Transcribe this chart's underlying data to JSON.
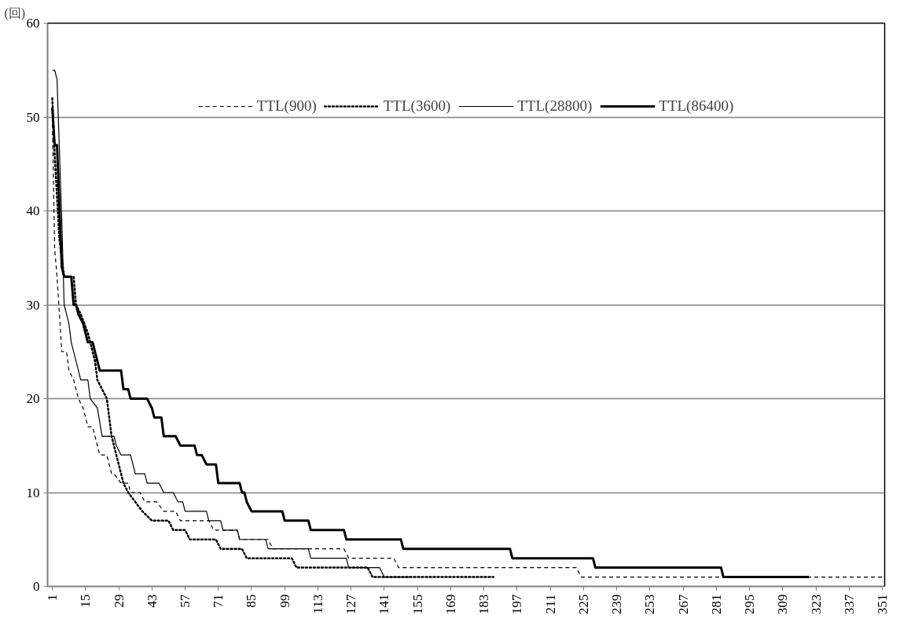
{
  "chart_data": {
    "type": "line",
    "ylabel": "(回)",
    "xlim": [
      -1,
      352
    ],
    "xticks": [
      1,
      15,
      29,
      43,
      57,
      71,
      85,
      99,
      113,
      127,
      141,
      155,
      169,
      183,
      197,
      211,
      225,
      239,
      253,
      267,
      281,
      295,
      309,
      323,
      337,
      351
    ],
    "ylim": [
      0,
      60
    ],
    "yticks": [
      0,
      10,
      20,
      30,
      40,
      50,
      60
    ],
    "grid": "y",
    "legend": "top",
    "series": [
      {
        "name": "TTL(900)",
        "color": "#000000",
        "line_style": "dashed",
        "x": [
          1,
          2,
          3,
          5,
          7,
          8,
          10,
          12,
          14,
          16,
          18,
          19,
          21,
          24,
          26,
          27,
          30,
          33,
          34,
          38,
          40,
          45,
          48,
          53,
          55,
          67,
          69,
          79,
          80,
          92,
          94,
          124,
          126,
          145,
          147,
          222,
          224,
          351
        ],
        "values": [
          50,
          36,
          33,
          25,
          25,
          23,
          22,
          20,
          19,
          17,
          17,
          16,
          14,
          14,
          12,
          12,
          11,
          11,
          10,
          10,
          9,
          9,
          8,
          8,
          7,
          7,
          6,
          6,
          5,
          5,
          4,
          4,
          3,
          3,
          2,
          2,
          1,
          1
        ]
      },
      {
        "name": "TTL(3600)",
        "color": "#000000",
        "line_style": "dotted",
        "x": [
          1,
          2,
          4,
          6,
          10,
          11,
          13,
          16,
          18,
          19,
          20,
          22,
          24,
          25,
          26,
          28,
          30,
          31,
          33,
          36,
          39,
          43,
          50,
          52,
          57,
          59,
          70,
          72,
          81,
          83,
          102,
          104,
          134,
          136,
          187
        ],
        "values": [
          52,
          46,
          37,
          33,
          33,
          30,
          29,
          27,
          25,
          24,
          22,
          21,
          20,
          18,
          16,
          14,
          12,
          11,
          10,
          9,
          8,
          7,
          7,
          6,
          6,
          5,
          5,
          4,
          4,
          3,
          3,
          2,
          2,
          1,
          1
        ]
      },
      {
        "name": "TTL(28800)",
        "color": "#000000",
        "line_style": "solid",
        "x": [
          1,
          2,
          3,
          5,
          6,
          8,
          9,
          11,
          13,
          16,
          17,
          20,
          22,
          27,
          28,
          30,
          34,
          35,
          36,
          40,
          41,
          46,
          48,
          52,
          54,
          56,
          57,
          66,
          67,
          72,
          73,
          79,
          80,
          91,
          92,
          109,
          110,
          125,
          126,
          139,
          141,
          152
        ],
        "values": [
          55,
          55,
          54,
          39,
          30,
          28,
          26,
          24,
          22,
          22,
          20,
          19,
          16,
          16,
          15,
          14,
          14,
          13,
          12,
          12,
          11,
          11,
          10,
          10,
          9,
          9,
          8,
          8,
          7,
          7,
          6,
          6,
          5,
          5,
          4,
          4,
          3,
          3,
          2,
          2,
          1,
          1
        ]
      },
      {
        "name": "TTL(86400)",
        "color": "#000000",
        "line_style": "solid",
        "x": [
          1,
          2,
          3,
          5,
          6,
          9,
          10,
          11,
          12,
          14,
          16,
          18,
          19,
          21,
          30,
          31,
          33,
          34,
          41,
          43,
          44,
          47,
          48,
          53,
          55,
          61,
          62,
          64,
          66,
          70,
          71,
          80,
          81,
          82,
          83,
          85,
          98,
          99,
          109,
          110,
          124,
          125,
          148,
          149,
          194,
          195,
          229,
          230,
          283,
          284,
          320
        ],
        "values": [
          51,
          47,
          47,
          34,
          33,
          33,
          30,
          30,
          29,
          28,
          26,
          26,
          25,
          23,
          23,
          21,
          21,
          20,
          20,
          19,
          18,
          18,
          16,
          16,
          15,
          15,
          14,
          14,
          13,
          13,
          11,
          11,
          10,
          10,
          9,
          8,
          8,
          7,
          7,
          6,
          6,
          5,
          5,
          4,
          4,
          3,
          3,
          2,
          2,
          1,
          1
        ]
      }
    ]
  }
}
